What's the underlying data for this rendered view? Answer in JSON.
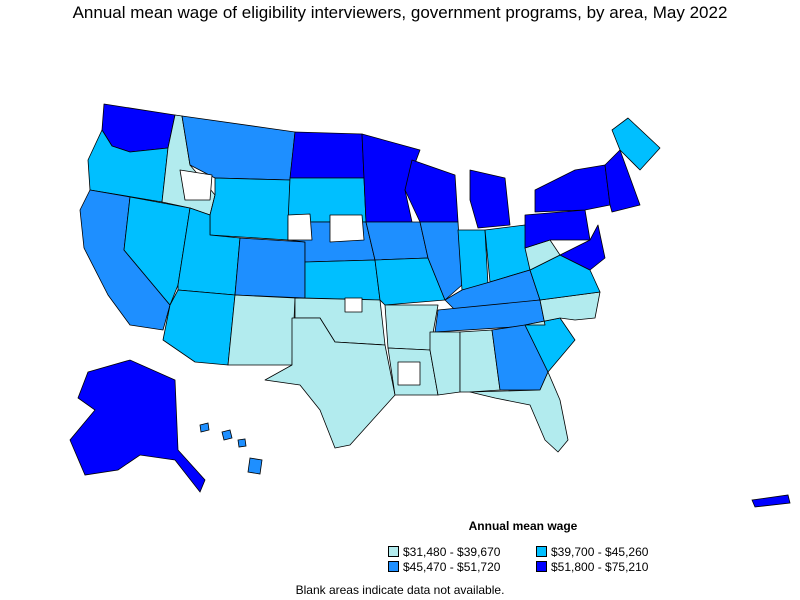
{
  "title": "Annual mean wage of eligibility interviewers, government programs, by area, May 2022",
  "legend": {
    "title": "Annual mean wage",
    "items": [
      {
        "label": "$31,480 - $39,670",
        "color": "#b2ebee"
      },
      {
        "label": "$39,700 - $45,260",
        "color": "#00bfff"
      },
      {
        "label": "$45,470 - $51,720",
        "color": "#1e8fff"
      },
      {
        "label": "$51,800 - $75,210",
        "color": "#0000ff"
      }
    ]
  },
  "note": "Blank areas indicate data not available.",
  "colors": {
    "c1": "#b2ebee",
    "c2": "#00bfff",
    "c3": "#1e8fff",
    "c4": "#0000ff",
    "blank": "#ffffff",
    "border": "#000000"
  }
}
